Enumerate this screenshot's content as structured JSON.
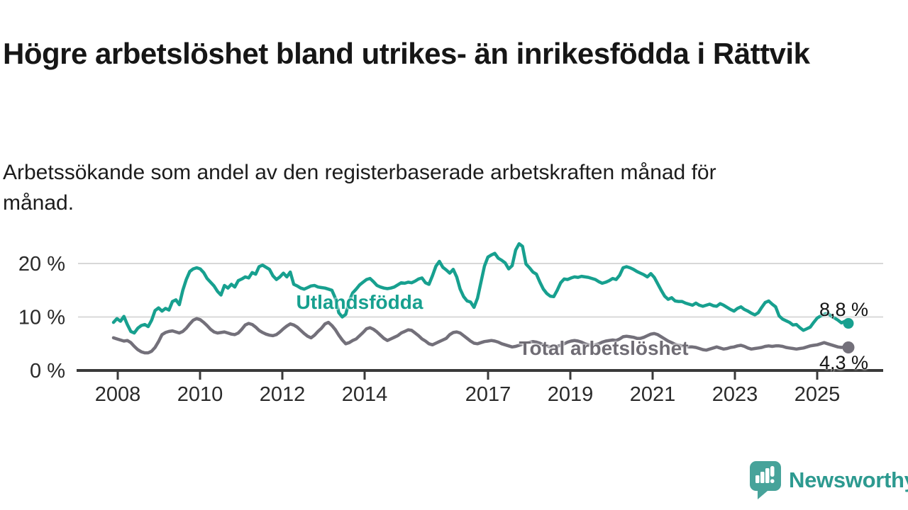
{
  "header": {
    "title": "Högre arbetslöshet bland utrikes- än inrikesfödda i Rättvik",
    "subtitle": "Arbetssökande som andel av den registerbaserade arbetskraften månad för månad."
  },
  "branding": {
    "logo_text": "Newsworthy",
    "logo_icon": "newsworthy-chart-bubble-icon",
    "logo_color": "#2d9a90",
    "logo_icon_color": "#47a39a"
  },
  "chart_data": {
    "type": "line",
    "title": "Högre arbetslöshet bland utrikes- än inrikesfödda i Rättvik",
    "subtitle": "Arbetssökande som andel av den registerbaserade arbetskraften månad för månad.",
    "unit": "percent",
    "x_monthly_start": "2008-01",
    "x_monthly_end": "2025-09",
    "x_tick_years": [
      2008,
      2010,
      2012,
      2014,
      2017,
      2019,
      2021,
      2023,
      2025
    ],
    "y_ticks": [
      {
        "value": 0,
        "label": "0 %"
      },
      {
        "value": 10,
        "label": "10 %"
      },
      {
        "value": 20,
        "label": "20 %"
      }
    ],
    "ylim": [
      0,
      25
    ],
    "grid": true,
    "legend_position": "inline",
    "colors": {
      "grid": "#d8d8d8",
      "axis": "#3a3a3a",
      "text": "#2a2a2a"
    },
    "series": [
      {
        "name": "Utlandsfödda",
        "color": "#17a08f",
        "end_label": "8,8 %",
        "end_value": 8.8,
        "values": [
          9.0,
          9.7,
          9.2,
          10.1,
          8.6,
          7.3,
          7.0,
          7.9,
          8.4,
          8.6,
          8.2,
          9.4,
          11.2,
          11.7,
          11.1,
          11.6,
          11.3,
          12.9,
          13.2,
          12.3,
          15.0,
          17.0,
          18.5,
          19.0,
          19.2,
          19.0,
          18.3,
          17.2,
          16.5,
          15.8,
          14.8,
          14.1,
          15.9,
          15.4,
          16.1,
          15.6,
          16.8,
          17.1,
          17.5,
          17.3,
          18.3,
          18.0,
          19.4,
          19.7,
          19.3,
          18.9,
          17.7,
          17.0,
          17.5,
          18.2,
          17.5,
          18.4,
          16.1,
          15.8,
          15.4,
          15.2,
          15.5,
          15.8,
          15.9,
          15.6,
          15.5,
          15.4,
          15.2,
          15.0,
          13.5,
          10.8,
          10.0,
          10.5,
          13.0,
          14.5,
          15.2,
          16.0,
          16.5,
          17.0,
          17.2,
          16.6,
          15.9,
          15.6,
          15.4,
          15.3,
          15.4,
          15.6,
          16.0,
          16.4,
          16.3,
          16.5,
          16.4,
          16.7,
          17.1,
          17.3,
          16.4,
          16.1,
          17.7,
          19.5,
          20.4,
          19.3,
          18.8,
          18.2,
          18.9,
          17.5,
          15.2,
          13.8,
          13.0,
          12.8,
          11.8,
          13.5,
          16.5,
          19.5,
          21.2,
          21.6,
          21.9,
          21.0,
          20.6,
          20.1,
          19.0,
          19.6,
          22.5,
          23.7,
          23.2,
          19.9,
          19.2,
          18.4,
          18.0,
          16.5,
          15.2,
          14.4,
          13.9,
          13.8,
          15.0,
          16.4,
          17.1,
          17.0,
          17.3,
          17.5,
          17.4,
          17.6,
          17.5,
          17.4,
          17.2,
          17.0,
          16.6,
          16.3,
          16.5,
          16.8,
          17.2,
          17.0,
          17.8,
          19.2,
          19.4,
          19.2,
          18.9,
          18.5,
          18.2,
          17.9,
          17.5,
          18.1,
          17.4,
          16.2,
          15.0,
          13.9,
          13.3,
          13.6,
          13.0,
          12.9,
          12.9,
          12.6,
          12.4,
          12.2,
          12.6,
          12.2,
          12.0,
          12.2,
          12.4,
          12.1,
          12.0,
          12.5,
          12.2,
          11.8,
          11.4,
          11.1,
          11.6,
          11.9,
          11.4,
          11.1,
          10.7,
          10.4,
          10.8,
          11.8,
          12.7,
          13.0,
          12.4,
          11.9,
          10.2,
          9.6,
          9.3,
          9.0,
          8.5,
          8.6,
          8.0,
          7.5,
          7.8,
          8.1,
          9.0,
          9.8,
          10.2,
          10.5,
          10.7,
          10.2,
          9.8,
          9.4,
          8.9,
          9.2,
          8.8
        ]
      },
      {
        "name": "Total arbetslöshet",
        "color": "#73707a",
        "end_label": "4,3 %",
        "end_value": 4.3,
        "values": [
          6.1,
          5.9,
          5.7,
          5.5,
          5.6,
          5.2,
          4.5,
          3.9,
          3.5,
          3.3,
          3.3,
          3.6,
          4.3,
          5.4,
          6.7,
          7.1,
          7.3,
          7.4,
          7.2,
          7.0,
          7.3,
          7.9,
          8.7,
          9.4,
          9.7,
          9.5,
          9.0,
          8.4,
          7.7,
          7.2,
          7.0,
          7.1,
          7.2,
          7.0,
          6.8,
          6.7,
          7.0,
          7.7,
          8.5,
          8.8,
          8.6,
          8.1,
          7.5,
          7.1,
          6.8,
          6.6,
          6.5,
          6.7,
          7.2,
          7.8,
          8.3,
          8.7,
          8.5,
          8.1,
          7.5,
          6.9,
          6.4,
          6.1,
          6.6,
          7.3,
          7.9,
          8.7,
          9.0,
          8.4,
          7.6,
          6.6,
          5.7,
          5.0,
          5.2,
          5.6,
          5.9,
          6.5,
          7.1,
          7.8,
          8.0,
          7.7,
          7.2,
          6.6,
          6.0,
          5.6,
          5.9,
          6.2,
          6.5,
          7.0,
          7.3,
          7.6,
          7.5,
          7.0,
          6.5,
          5.9,
          5.5,
          5.0,
          4.8,
          5.1,
          5.4,
          5.7,
          6.0,
          6.7,
          7.1,
          7.2,
          7.0,
          6.5,
          6.0,
          5.5,
          5.1,
          5.0,
          5.2,
          5.4,
          5.5,
          5.6,
          5.5,
          5.3,
          5.0,
          4.8,
          4.6,
          4.4,
          4.5,
          4.7,
          4.9,
          5.1,
          5.3,
          5.4,
          5.3,
          5.1,
          4.8,
          4.6,
          4.4,
          4.3,
          4.5,
          4.7,
          5.0,
          5.3,
          5.5,
          5.6,
          5.5,
          5.3,
          5.0,
          4.8,
          4.7,
          4.8,
          5.0,
          5.3,
          5.5,
          5.6,
          5.7,
          5.6,
          5.9,
          6.3,
          6.4,
          6.3,
          6.2,
          6.0,
          6.0,
          6.2,
          6.5,
          6.8,
          6.9,
          6.7,
          6.3,
          5.9,
          5.5,
          5.2,
          4.9,
          4.7,
          4.6,
          4.5,
          4.4,
          4.4,
          4.3,
          4.1,
          3.9,
          3.8,
          4.0,
          4.2,
          4.4,
          4.2,
          4.0,
          4.1,
          4.3,
          4.4,
          4.6,
          4.7,
          4.5,
          4.2,
          4.0,
          4.1,
          4.2,
          4.3,
          4.5,
          4.6,
          4.5,
          4.6,
          4.6,
          4.5,
          4.3,
          4.2,
          4.1,
          4.0,
          4.1,
          4.2,
          4.4,
          4.6,
          4.7,
          4.8,
          5.0,
          5.2,
          5.0,
          4.8,
          4.6,
          4.4,
          4.3,
          4.4,
          4.3
        ]
      }
    ]
  }
}
